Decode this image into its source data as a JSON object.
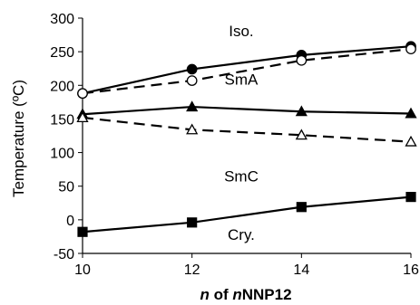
{
  "chart_data": {
    "type": "line",
    "title": "",
    "x": [
      10,
      12,
      14,
      16
    ],
    "xticks": [
      "10",
      "12",
      "14",
      "16"
    ],
    "yticks": [
      "-50",
      "0",
      "50",
      "100",
      "150",
      "200",
      "250",
      "300"
    ],
    "xlim": [
      10,
      16
    ],
    "ylim": [
      -50,
      300
    ],
    "grid": false,
    "legend": "none",
    "xlabel": {
      "italic": "n",
      "text1": " of ",
      "italic2": "n",
      "text2": "NNP12"
    },
    "ylabel": "Temperature (ºC)",
    "region_labels": [
      {
        "text": "Iso.",
        "x": 12.9,
        "y": 273
      },
      {
        "text": "SmA",
        "x": 12.9,
        "y": 201
      },
      {
        "text": "SmC",
        "x": 12.9,
        "y": 57
      },
      {
        "text": "Cry.",
        "x": 12.9,
        "y": -30
      }
    ],
    "series": [
      {
        "key": "iso_heat",
        "marker": "circle-filled",
        "dash": false,
        "values": [
          188,
          224,
          245,
          258
        ]
      },
      {
        "key": "iso_cool",
        "marker": "circle-open",
        "dash": true,
        "values": [
          188,
          207,
          237,
          254
        ]
      },
      {
        "key": "sma_heat",
        "marker": "triangle-filled",
        "dash": false,
        "values": [
          157,
          168,
          161,
          158
        ]
      },
      {
        "key": "sma_cool",
        "marker": "triangle-open",
        "dash": true,
        "values": [
          152,
          134,
          126,
          116
        ]
      },
      {
        "key": "cry_heat",
        "marker": "square-filled",
        "dash": false,
        "values": [
          -18,
          -4,
          19,
          34
        ]
      }
    ]
  }
}
